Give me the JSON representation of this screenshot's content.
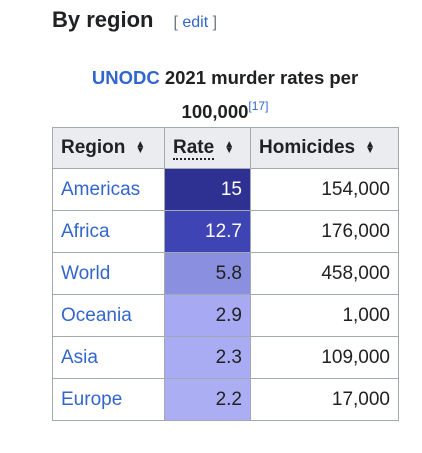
{
  "section": {
    "title": "By region",
    "edit_open": "[",
    "edit_label": "edit",
    "edit_close": "]"
  },
  "table": {
    "caption_link": "UNODC",
    "caption_rest": " 2021 murder rates per 100,000",
    "caption_ref": "[17]",
    "headers": [
      "Region",
      "Rate",
      "Homicides"
    ],
    "sort_icon": "sort-arrows-icon",
    "rows": [
      {
        "region": "Americas",
        "rate": "15",
        "homicides": "154,000",
        "shade": "#2e3192",
        "text": "#ffffff"
      },
      {
        "region": "Africa",
        "rate": "12.7",
        "homicides": "176,000",
        "shade": "#3f44b5",
        "text": "#ffffff"
      },
      {
        "region": "World",
        "rate": "5.8",
        "homicides": "458,000",
        "shade": "#8a8fe0",
        "text": "#202122"
      },
      {
        "region": "Oceania",
        "rate": "2.9",
        "homicides": "1,000",
        "shade": "#a7aaf2",
        "text": "#202122"
      },
      {
        "region": "Asia",
        "rate": "2.3",
        "homicides": "109,000",
        "shade": "#a9acf3",
        "text": "#202122"
      },
      {
        "region": "Europe",
        "rate": "2.2",
        "homicides": "17,000",
        "shade": "#abaef3",
        "text": "#202122"
      }
    ]
  }
}
